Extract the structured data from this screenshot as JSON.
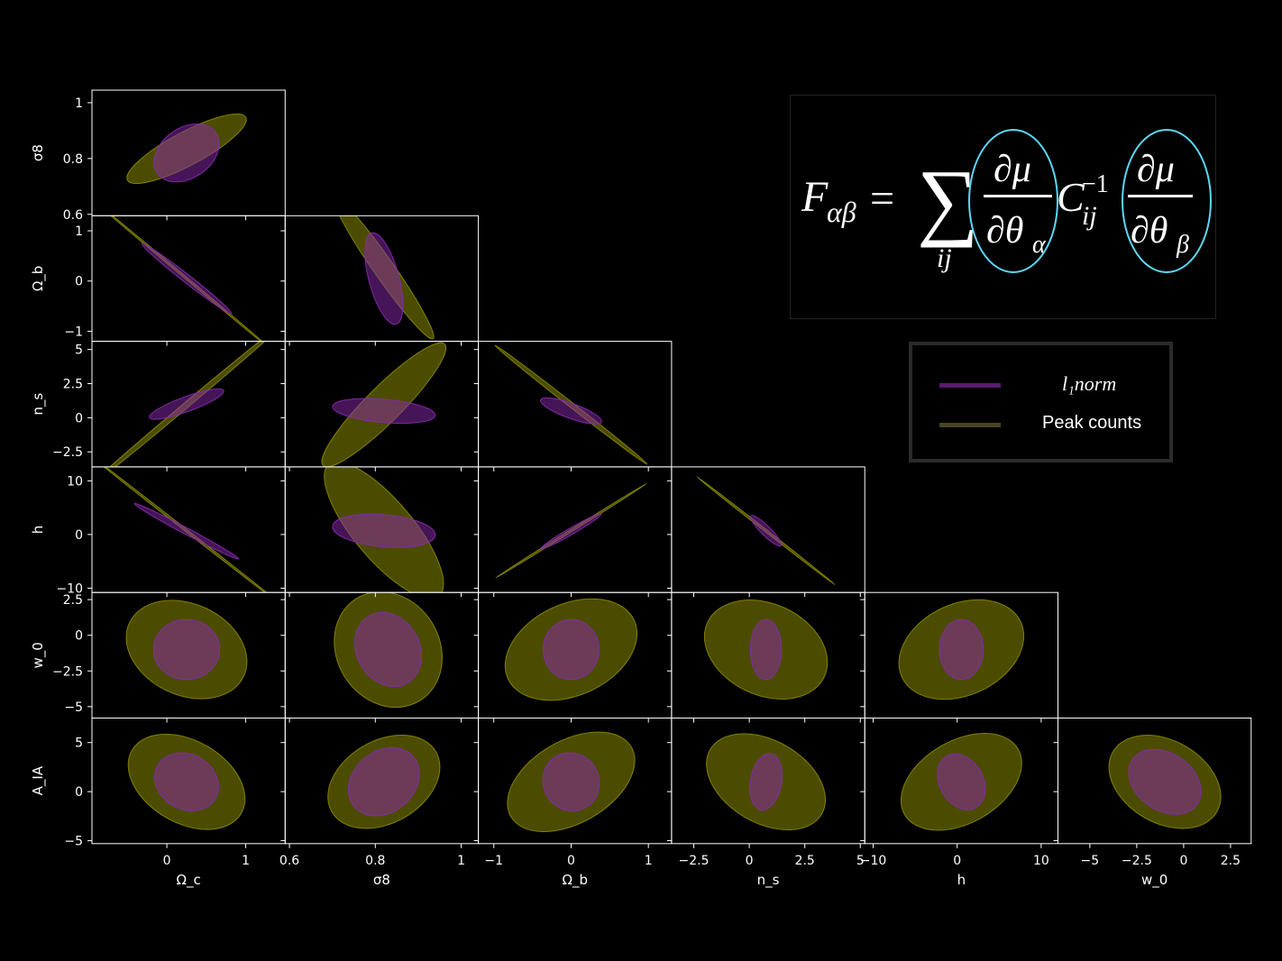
{
  "figure": {
    "background": "#000000",
    "params": [
      "Ω_c",
      "σ8",
      "Ω_b",
      "n_s",
      "h",
      "w_0",
      "A_IA"
    ],
    "xlabels": [
      "Ω_c",
      "σ8",
      "Ω_b",
      "n_s",
      "h",
      "w_0"
    ],
    "ylabels": [
      "σ8",
      "Ω_b",
      "n_s",
      "h",
      "w_0",
      "A_IA"
    ]
  },
  "formula": {
    "text": "F_αβ = Σ_ij (∂μ/∂θ_α) C_ij^−1 (∂μ/∂θ_β)",
    "lhs": "F",
    "lhs_sub": "αβ",
    "equals": "=",
    "sum": "∑",
    "sum_sub": "ij",
    "numerator": "∂μ",
    "den_left": "∂θ",
    "den_left_sub": "α",
    "matrix": "C",
    "matrix_sub": "ij",
    "matrix_sup": "−1",
    "den_right": "∂θ",
    "den_right_sub": "β",
    "highlight_color": "#5bd8f5"
  },
  "legend": {
    "items": [
      {
        "label": "l₁norm",
        "color": "#5a1a6e"
      },
      {
        "label": "Peak counts",
        "color": "#4a4520"
      }
    ]
  },
  "chart_data": {
    "type": "corner-fisher-ellipses",
    "colors": {
      "l1norm": "#8a2ab0",
      "peak_counts": "#8a8a00",
      "overlap": "#b58e5a"
    },
    "axes_x": [
      {
        "name": "Ω_c",
        "ticks": [
          0,
          1
        ],
        "range": [
          -0.95,
          1.5
        ]
      },
      {
        "name": "σ8",
        "ticks": [
          0.6,
          0.8,
          1.0
        ],
        "range": [
          0.59,
          1.04
        ]
      },
      {
        "name": "Ω_b",
        "ticks": [
          -1,
          0,
          1
        ],
        "range": [
          -1.2,
          1.3
        ]
      },
      {
        "name": "n_s",
        "ticks": [
          -2.5,
          0.0,
          2.5,
          5.0
        ],
        "range": [
          -3.5,
          5.2
        ]
      },
      {
        "name": "h",
        "ticks": [
          -10,
          0,
          10
        ],
        "range": [
          -11,
          12
        ]
      },
      {
        "name": "w_0",
        "ticks": [
          -5.0,
          -2.5,
          0.0,
          2.5
        ],
        "range": [
          -6.7,
          3.6
        ]
      }
    ],
    "axes_y": [
      {
        "name": "σ8",
        "ticks": [
          0.6,
          0.8,
          1.0
        ],
        "range": [
          0.595,
          1.045
        ]
      },
      {
        "name": "Ω_b",
        "ticks": [
          -1,
          0,
          1
        ],
        "range": [
          -1.2,
          1.3
        ]
      },
      {
        "name": "n_s",
        "ticks": [
          -2.5,
          0.0,
          2.5,
          5.0
        ],
        "range": [
          -3.6,
          5.6
        ]
      },
      {
        "name": "h",
        "ticks": [
          -10,
          0,
          10
        ],
        "range": [
          -10.8,
          12.6
        ]
      },
      {
        "name": "w_0",
        "ticks": [
          -5.0,
          -2.5,
          0.0,
          2.5
        ],
        "range": [
          -5.8,
          3.0
        ]
      },
      {
        "name": "A_IA",
        "ticks": [
          -5,
          0,
          5
        ],
        "range": [
          -5.3,
          7.5
        ]
      }
    ],
    "ellipses": [
      {
        "row": 0,
        "col": 0,
        "l1": {
          "cx": 0.25,
          "cy": 0.82,
          "rx": 0.45,
          "ry": 0.09,
          "angle": 35
        },
        "pc": {
          "cx": 0.25,
          "cy": 0.835,
          "rx": 0.85,
          "ry": 0.06,
          "angle": 28
        }
      },
      {
        "row": 1,
        "col": 0,
        "l1": {
          "cx": 0.25,
          "cy": 0.05,
          "rx": 0.72,
          "ry": 0.08,
          "angle": -38
        },
        "pc": {
          "cx": 0.25,
          "cy": 0.05,
          "rx": 1.55,
          "ry": 0.02,
          "angle": -40
        }
      },
      {
        "row": 1,
        "col": 1,
        "l1": {
          "cx": 0.82,
          "cy": 0.05,
          "rx": 0.11,
          "ry": 0.3,
          "angle": -75
        },
        "pc": {
          "cx": 0.82,
          "cy": 0.25,
          "rx": 0.2,
          "ry": 0.2,
          "angle": -55
        }
      },
      {
        "row": 2,
        "col": 0,
        "l1": {
          "cx": 0.25,
          "cy": 1.0,
          "rx": 0.5,
          "ry": 0.55,
          "angle": 20
        },
        "pc": {
          "cx": 0.25,
          "cy": 0.95,
          "rx": 1.6,
          "ry": 0.2,
          "angle": 40
        }
      },
      {
        "row": 2,
        "col": 1,
        "l1": {
          "cx": 0.82,
          "cy": 0.5,
          "rx": 0.12,
          "ry": 0.85,
          "angle": -5
        },
        "pc": {
          "cx": 0.82,
          "cy": 0.95,
          "rx": 0.2,
          "ry": 1.3,
          "angle": 45
        }
      },
      {
        "row": 2,
        "col": 2,
        "l1": {
          "cx": 0.0,
          "cy": 0.5,
          "rx": 0.42,
          "ry": 0.55,
          "angle": -20
        },
        "pc": {
          "cx": 0.0,
          "cy": 0.95,
          "rx": 1.25,
          "ry": 0.18,
          "angle": -38
        }
      },
      {
        "row": 3,
        "col": 0,
        "l1": {
          "cx": 0.25,
          "cy": 0.6,
          "rx": 0.75,
          "ry": 0.6,
          "angle": -28
        },
        "pc": {
          "cx": 0.25,
          "cy": 0.7,
          "rx": 1.6,
          "ry": 0.2,
          "angle": -38
        }
      },
      {
        "row": 3,
        "col": 1,
        "l1": {
          "cx": 0.82,
          "cy": 0.7,
          "rx": 0.12,
          "ry": 3.0,
          "angle": -5
        },
        "pc": {
          "cx": 0.82,
          "cy": 0.8,
          "rx": 0.2,
          "ry": 5.5,
          "angle": -50
        }
      },
      {
        "row": 3,
        "col": 2,
        "l1": {
          "cx": 0.0,
          "cy": 0.6,
          "rx": 0.45,
          "ry": 0.6,
          "angle": 30
        },
        "pc": {
          "cx": 0.0,
          "cy": 0.7,
          "rx": 1.15,
          "ry": 0.2,
          "angle": 32
        }
      },
      {
        "row": 3,
        "col": 3,
        "l1": {
          "cx": 0.75,
          "cy": 0.7,
          "rx": 0.95,
          "ry": 0.9,
          "angle": -45
        },
        "pc": {
          "cx": 0.75,
          "cy": 0.7,
          "rx": 3.95,
          "ry": 0.2,
          "angle": -38
        }
      },
      {
        "row": 4,
        "col": 0,
        "l1": {
          "cx": 0.25,
          "cy": -1.0,
          "rx": 0.42,
          "ry": 2.1,
          "angle": 0
        },
        "pc": {
          "cx": 0.25,
          "cy": -1.0,
          "rx": 0.8,
          "ry": 3.2,
          "angle": -25
        }
      },
      {
        "row": 4,
        "col": 1,
        "l1": {
          "cx": 0.83,
          "cy": -1.0,
          "rx": 0.09,
          "ry": 2.2,
          "angle": -60
        },
        "pc": {
          "cx": 0.83,
          "cy": -1.0,
          "rx": 0.14,
          "ry": 3.6,
          "angle": -58
        }
      },
      {
        "row": 4,
        "col": 2,
        "l1": {
          "cx": 0.0,
          "cy": -1.0,
          "rx": 0.36,
          "ry": 2.1,
          "angle": 0
        },
        "pc": {
          "cx": 0.0,
          "cy": -1.0,
          "rx": 0.9,
          "ry": 3.2,
          "angle": 25
        }
      },
      {
        "row": 4,
        "col": 3,
        "l1": {
          "cx": 0.75,
          "cy": -1.0,
          "rx": 0.7,
          "ry": 2.1,
          "angle": 0
        },
        "pc": {
          "cx": 0.75,
          "cy": -1.0,
          "rx": 2.9,
          "ry": 3.2,
          "angle": -25
        }
      },
      {
        "row": 4,
        "col": 4,
        "l1": {
          "cx": 0.5,
          "cy": -1.0,
          "rx": 2.6,
          "ry": 2.1,
          "angle": 0
        },
        "pc": {
          "cx": 0.5,
          "cy": -1.0,
          "rx": 7.8,
          "ry": 3.2,
          "angle": 25
        }
      },
      {
        "row": 5,
        "col": 0,
        "l1": {
          "cx": 0.25,
          "cy": 1.0,
          "rx": 0.42,
          "ry": 2.8,
          "angle": -30
        },
        "pc": {
          "cx": 0.25,
          "cy": 1.0,
          "rx": 0.8,
          "ry": 4.2,
          "angle": -30
        }
      },
      {
        "row": 5,
        "col": 1,
        "l1": {
          "cx": 0.82,
          "cy": 1.0,
          "rx": 0.09,
          "ry": 3.1,
          "angle": 40
        },
        "pc": {
          "cx": 0.82,
          "cy": 1.0,
          "rx": 0.14,
          "ry": 4.2,
          "angle": 30
        }
      },
      {
        "row": 5,
        "col": 2,
        "l1": {
          "cx": 0.0,
          "cy": 1.0,
          "rx": 0.36,
          "ry": 3.0,
          "angle": 30
        },
        "pc": {
          "cx": 0.0,
          "cy": 1.0,
          "rx": 0.9,
          "ry": 4.2,
          "angle": 30
        }
      },
      {
        "row": 5,
        "col": 3,
        "l1": {
          "cx": 0.75,
          "cy": 1.0,
          "rx": 0.7,
          "ry": 2.9,
          "angle": -10
        },
        "pc": {
          "cx": 0.75,
          "cy": 1.0,
          "rx": 2.9,
          "ry": 4.2,
          "angle": -30
        }
      },
      {
        "row": 5,
        "col": 4,
        "l1": {
          "cx": 0.5,
          "cy": 1.0,
          "rx": 2.6,
          "ry": 3.0,
          "angle": 30
        },
        "pc": {
          "cx": 0.5,
          "cy": 1.0,
          "rx": 7.8,
          "ry": 4.2,
          "angle": 30
        }
      },
      {
        "row": 5,
        "col": 5,
        "l1": {
          "cx": -1.0,
          "cy": 1.0,
          "rx": 2.1,
          "ry": 2.9,
          "angle": -35
        },
        "pc": {
          "cx": -1.0,
          "cy": 1.0,
          "rx": 3.2,
          "ry": 4.2,
          "angle": -30
        }
      }
    ]
  }
}
